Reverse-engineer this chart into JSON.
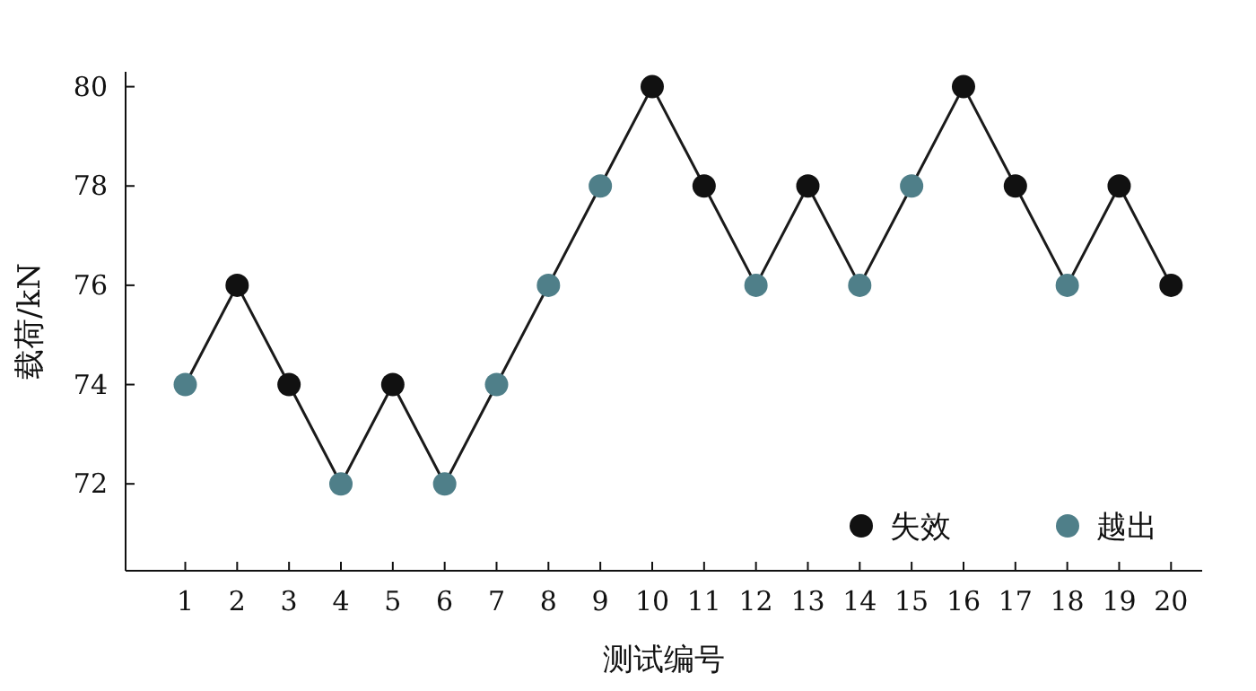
{
  "chart_data": {
    "type": "scatter",
    "xlabel": "测试编号",
    "ylabel": "载荷/kN",
    "xlim": [
      -0.15,
      20.6
    ],
    "ylim": [
      70.25,
      80.3
    ],
    "xticks": [
      1,
      2,
      3,
      4,
      5,
      6,
      7,
      8,
      9,
      10,
      11,
      12,
      13,
      14,
      15,
      16,
      17,
      18,
      19,
      20
    ],
    "yticks": [
      72,
      74,
      76,
      78,
      80
    ],
    "grid": false,
    "legend": "bottom right",
    "marker": "circle",
    "series": [
      {
        "type": "line",
        "marker": "none",
        "color": "#1a1a1a",
        "x": [
          1,
          2,
          3,
          4,
          5,
          6,
          7,
          8,
          9,
          10,
          11,
          12,
          13,
          14,
          15,
          16,
          17,
          18,
          19,
          20
        ],
        "values": [
          74,
          76,
          74,
          72,
          74,
          72,
          74,
          76,
          78,
          80,
          78,
          76,
          78,
          76,
          78,
          80,
          78,
          76,
          78,
          76
        ]
      },
      {
        "name": "失效",
        "color": "#111111",
        "x": [
          2,
          3,
          5,
          10,
          11,
          13,
          16,
          17,
          19,
          20
        ],
        "values": [
          76,
          74,
          74,
          80,
          78,
          78,
          80,
          78,
          78,
          76
        ]
      },
      {
        "name": "越出",
        "color": "#4f7f89",
        "x": [
          1,
          4,
          6,
          7,
          8,
          9,
          12,
          14,
          15,
          18
        ],
        "values": [
          74,
          72,
          72,
          74,
          76,
          78,
          76,
          76,
          78,
          76
        ]
      }
    ]
  }
}
